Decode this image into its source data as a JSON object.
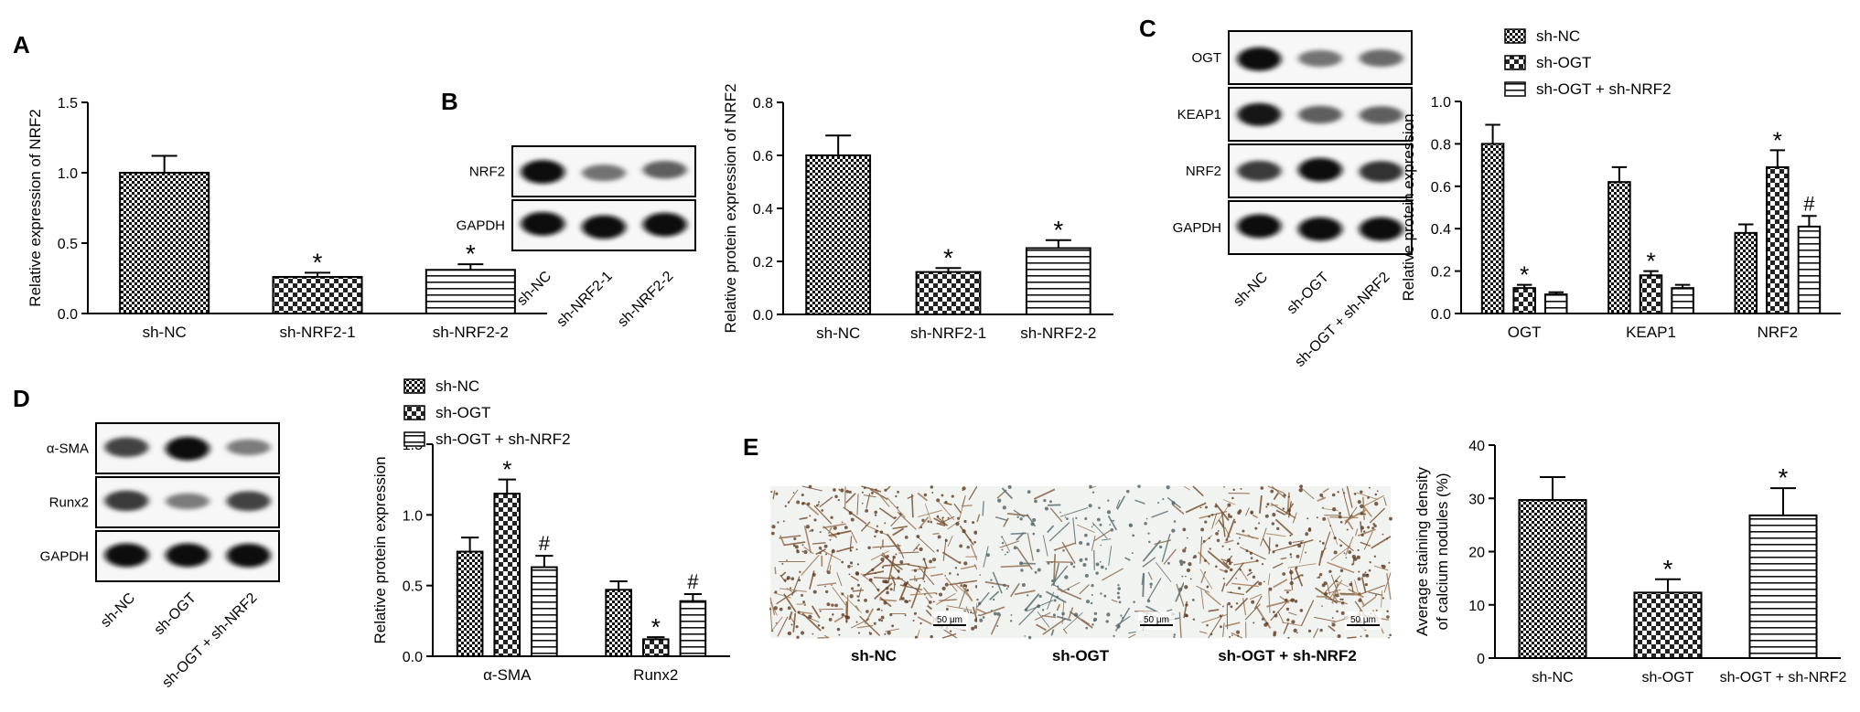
{
  "patterns": {
    "sh-NC": "check-dense",
    "sh-NRF2-1": "check-light",
    "sh-NRF2-2": "horizontal-lines",
    "sh-OGT": "check-light",
    "sh-OGT + sh-NRF2": "horizontal-lines"
  },
  "panel_labels": [
    "A",
    "B",
    "C",
    "D",
    "E"
  ],
  "blots": {
    "B": {
      "rows": [
        "NRF2",
        "GAPDH"
      ],
      "lanes": [
        "sh-NC",
        "sh-NRF2-1",
        "sh-NRF2-2"
      ]
    },
    "C": {
      "rows": [
        "OGT",
        "KEAP1",
        "NRF2",
        "GAPDH"
      ],
      "lanes": [
        "sh-NC",
        "sh-OGT",
        "sh-OGT + sh-NRF2"
      ]
    },
    "D": {
      "rows": [
        "α-SMA",
        "Runx2",
        "GAPDH"
      ],
      "lanes": [
        "sh-NC",
        "sh-OGT",
        "sh-OGT + sh-NRF2"
      ]
    }
  },
  "micrographs": {
    "labels": [
      "sh-NC",
      "sh-OGT",
      "sh-OGT + sh-NRF2"
    ],
    "scale_bar": "50 μm",
    "stain_density": [
      0.3,
      0.12,
      0.27
    ]
  },
  "chart_data": [
    {
      "id": "A",
      "type": "bar",
      "categories": [
        "sh-NC",
        "sh-NRF2-1",
        "sh-NRF2-2"
      ],
      "values": [
        1.0,
        0.26,
        0.31
      ],
      "errors": [
        0.12,
        0.03,
        0.04
      ],
      "annotations": [
        "",
        "*",
        "*"
      ],
      "ylabel": "Relative expression of NRF2",
      "ylim": [
        0,
        1.5
      ],
      "yticks": [
        0.0,
        0.5,
        1.0,
        1.5
      ],
      "ytick_labels": [
        "0.0",
        "0.5",
        "1.0",
        "1.5"
      ]
    },
    {
      "id": "B",
      "type": "bar",
      "categories": [
        "sh-NC",
        "sh-NRF2-1",
        "sh-NRF2-2"
      ],
      "values": [
        0.6,
        0.16,
        0.25
      ],
      "errors": [
        0.075,
        0.015,
        0.03
      ],
      "annotations": [
        "",
        "*",
        "*"
      ],
      "ylabel": "Relative protein expression of NRF2",
      "ylim": [
        0,
        0.8
      ],
      "yticks": [
        0.0,
        0.2,
        0.4,
        0.6,
        0.8
      ],
      "ytick_labels": [
        "0.0",
        "0.2",
        "0.4",
        "0.6",
        "0.8"
      ]
    },
    {
      "id": "C",
      "type": "bar",
      "categories": [
        "OGT",
        "KEAP1",
        "NRF2"
      ],
      "series": [
        {
          "name": "sh-NC",
          "values": [
            0.8,
            0.62,
            0.38
          ],
          "errors": [
            0.09,
            0.07,
            0.04
          ],
          "annotations": [
            "",
            "",
            ""
          ]
        },
        {
          "name": "sh-OGT",
          "values": [
            0.12,
            0.18,
            0.69
          ],
          "errors": [
            0.015,
            0.02,
            0.08
          ],
          "annotations": [
            "*",
            "*",
            "*"
          ]
        },
        {
          "name": "sh-OGT + sh-NRF2",
          "values": [
            0.09,
            0.12,
            0.41
          ],
          "errors": [
            0.01,
            0.015,
            0.05
          ],
          "annotations": [
            "",
            "",
            "#"
          ]
        }
      ],
      "ylabel": "Relative protein expression",
      "ylim": [
        0,
        1.0
      ],
      "yticks": [
        0.0,
        0.2,
        0.4,
        0.6,
        0.8,
        1.0
      ],
      "ytick_labels": [
        "0.0",
        "0.2",
        "0.4",
        "0.6",
        "0.8",
        "1.0"
      ],
      "legend": "top-left outside"
    },
    {
      "id": "D",
      "type": "bar",
      "categories": [
        "α-SMA",
        "Runx2"
      ],
      "series": [
        {
          "name": "sh-NC",
          "values": [
            0.74,
            0.47
          ],
          "errors": [
            0.1,
            0.06
          ],
          "annotations": [
            "",
            ""
          ]
        },
        {
          "name": "sh-OGT",
          "values": [
            1.15,
            0.12
          ],
          "errors": [
            0.1,
            0.015
          ],
          "annotations": [
            "*",
            "*"
          ]
        },
        {
          "name": "sh-OGT + sh-NRF2",
          "values": [
            0.63,
            0.39
          ],
          "errors": [
            0.08,
            0.05
          ],
          "annotations": [
            "#",
            "#"
          ]
        }
      ],
      "ylabel": "Relative protein expression",
      "ylim": [
        0,
        1.5
      ],
      "yticks": [
        0.0,
        0.5,
        1.0,
        1.5
      ],
      "ytick_labels": [
        "0.0",
        "0.5",
        "1.0",
        "1.5"
      ],
      "legend": "top-left outside"
    },
    {
      "id": "E",
      "type": "bar",
      "categories": [
        "sh-NC",
        "sh-OGT",
        "sh-OGT + sh-NRF2"
      ],
      "values": [
        29.7,
        12.3,
        26.8
      ],
      "errors": [
        4.3,
        2.5,
        5.1
      ],
      "annotations": [
        "",
        "*",
        "*"
      ],
      "ylabel": [
        "Average staining density",
        "of calcium nodules (%)"
      ],
      "ylim": [
        0,
        40
      ],
      "yticks": [
        0,
        10,
        20,
        30,
        40
      ],
      "ytick_labels": [
        "0",
        "10",
        "20",
        "30",
        "40"
      ]
    }
  ]
}
